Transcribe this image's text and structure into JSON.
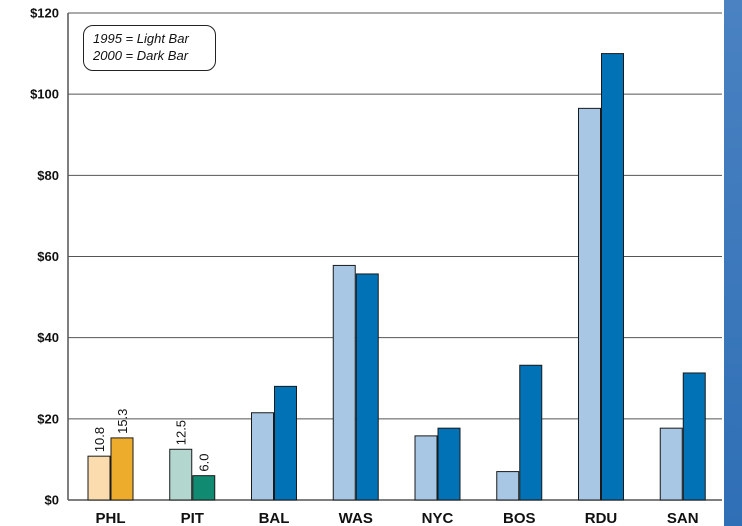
{
  "chart_data": {
    "type": "bar",
    "categories": [
      "PHL",
      "PIT",
      "BAL",
      "WAS",
      "NYC",
      "BOS",
      "RDU",
      "SAN"
    ],
    "series": [
      {
        "values": [
          10.8,
          12.5,
          21.5,
          57.8,
          15.8,
          7.0,
          96.5,
          17.7
        ]
      },
      {
        "values": [
          15.3,
          6.0,
          28.0,
          55.7,
          17.7,
          33.2,
          110.0,
          31.3
        ]
      }
    ],
    "data_labels": [
      {
        "category": "PHL",
        "series": 0,
        "text": "10.8"
      },
      {
        "category": "PHL",
        "series": 1,
        "text": "15.3"
      },
      {
        "category": "PIT",
        "series": 0,
        "text": "12.5"
      },
      {
        "category": "PIT",
        "series": 1,
        "text": "6.0"
      }
    ],
    "yticks": [
      "$0",
      "$20",
      "$40",
      "$60",
      "$80",
      "$100",
      "$120"
    ],
    "ylim": [
      0,
      120
    ],
    "grid": true,
    "legend_placement": "top-left",
    "bar_colors": {
      "light_default": "#a7c7e5",
      "dark_default": "#0072b5",
      "PHL_light": "#fadcae",
      "PHL_dark": "#eeac2c",
      "PIT_light": "#b3d6cf",
      "PIT_dark": "#108a70"
    },
    "title": "",
    "xlabel": "",
    "ylabel": ""
  },
  "legend": {
    "line1": "1995 = Light Bar",
    "line2": "2000 = Dark Bar"
  }
}
